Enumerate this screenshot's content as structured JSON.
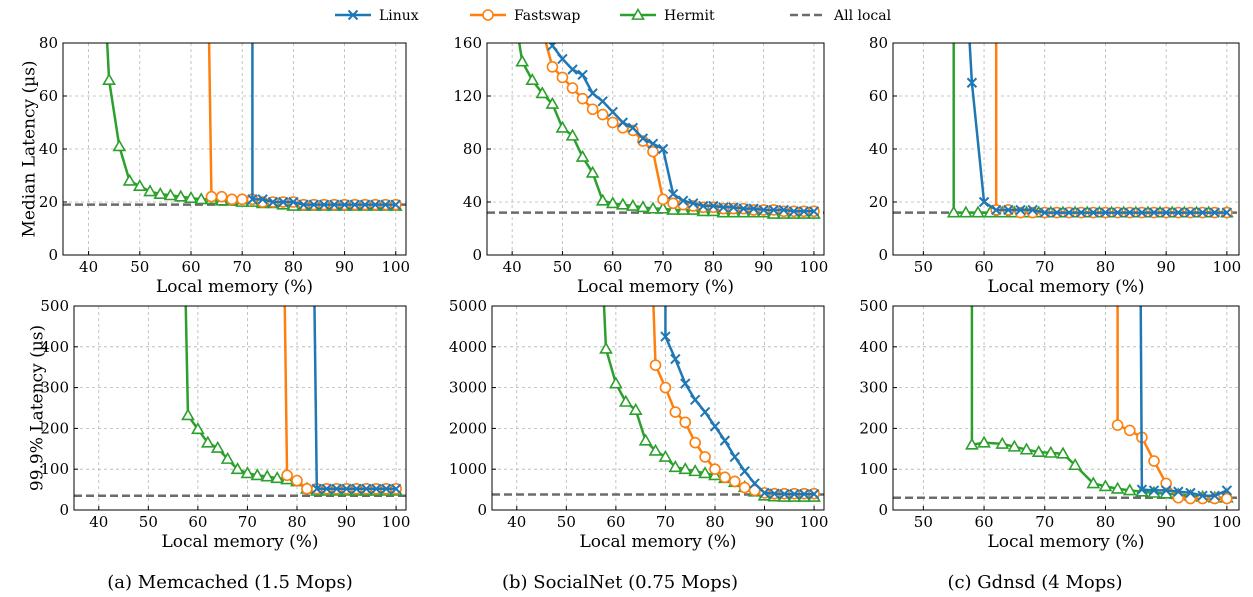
{
  "legend": {
    "placement": "top-center",
    "items": [
      {
        "label": "Linux",
        "color": "#1f77b4",
        "marker": "x",
        "dash": false
      },
      {
        "label": "Fastswap",
        "color": "#ff7f0e",
        "marker": "o",
        "dash": false
      },
      {
        "label": "Hermit",
        "color": "#2ca02c",
        "marker": "triangle",
        "dash": false
      },
      {
        "label": "All local",
        "color": "#6b6b6b",
        "marker": "none",
        "dash": true
      }
    ]
  },
  "captions": [
    "(a) Memcached (1.5 Mops)",
    "(b) SocialNet (0.75 Mops)",
    "(c) Gdnsd (4 Mops)"
  ],
  "chart_data": [
    {
      "type": "line",
      "panel": "a-top",
      "xlabel": "Local memory (%)",
      "ylabel": "Median Latency (µs)",
      "xlim": [
        35,
        102
      ],
      "ylim": [
        0,
        80
      ],
      "xticks": [
        40,
        50,
        60,
        70,
        80,
        90,
        100
      ],
      "yticks": [
        0,
        20,
        40,
        60,
        80
      ],
      "grid": true,
      "all_local": 19,
      "series": [
        {
          "name": "Linux",
          "x": [
            72,
            72,
            74,
            76,
            78,
            80,
            82,
            84,
            86,
            88,
            90,
            92,
            94,
            96,
            98,
            100
          ],
          "y": [
            85,
            21,
            21,
            20,
            20,
            20,
            19,
            19,
            19,
            19,
            19,
            19,
            19,
            19,
            19,
            19
          ]
        },
        {
          "name": "Fastswap",
          "x": [
            63.5,
            64,
            66,
            68,
            70,
            72,
            74,
            76,
            78,
            80,
            82,
            84,
            86,
            88,
            90,
            92,
            94,
            96,
            98,
            100
          ],
          "y": [
            85,
            22,
            22,
            21,
            21,
            21,
            20,
            20,
            20,
            20,
            19,
            19,
            19,
            19,
            19,
            19,
            19,
            19,
            19,
            19
          ]
        },
        {
          "name": "Hermit",
          "x": [
            43.5,
            44,
            46,
            48,
            50,
            52,
            54,
            56,
            58,
            60,
            62,
            64,
            66,
            68,
            70,
            72,
            74,
            76,
            78,
            80,
            82,
            84,
            86,
            88,
            90,
            92,
            94,
            96,
            98,
            100
          ],
          "y": [
            85,
            66,
            41,
            28,
            26,
            24,
            23,
            22.5,
            22,
            21.5,
            21,
            21,
            20.5,
            20.5,
            20,
            20,
            19.5,
            19.5,
            19,
            18.5,
            18.5,
            18.5,
            18.5,
            18.5,
            18.5,
            18.5,
            18.5,
            18.5,
            18.5,
            18.5
          ]
        }
      ]
    },
    {
      "type": "line",
      "panel": "b-top",
      "xlabel": "Local memory (%)",
      "ylabel": "",
      "xlim": [
        35,
        102
      ],
      "ylim": [
        0,
        160
      ],
      "xticks": [
        40,
        50,
        60,
        70,
        80,
        90,
        100
      ],
      "yticks": [
        0,
        40,
        80,
        120,
        160
      ],
      "grid": true,
      "all_local": 32,
      "series": [
        {
          "name": "Linux",
          "x": [
            47,
            48,
            50,
            52,
            54,
            56,
            58,
            60,
            62,
            64,
            66,
            68,
            70,
            72,
            74,
            76,
            78,
            80,
            82,
            84,
            86,
            88,
            90,
            92,
            94,
            96,
            98,
            100
          ],
          "y": [
            170,
            158,
            148,
            140,
            136,
            122,
            116,
            108,
            100,
            96,
            88,
            84,
            80,
            46,
            41,
            39,
            37,
            37,
            36,
            36,
            35,
            35,
            34,
            34,
            34,
            33,
            33,
            33
          ]
        },
        {
          "name": "Fastswap",
          "x": [
            46,
            48,
            50,
            52,
            54,
            56,
            58,
            60,
            62,
            64,
            66,
            68,
            70,
            72,
            74,
            76,
            78,
            80,
            82,
            84,
            86,
            88,
            90,
            92,
            94,
            96,
            98,
            100
          ],
          "y": [
            170,
            142,
            134,
            126,
            118,
            110,
            106,
            100,
            96,
            94,
            86,
            78,
            42,
            39,
            38,
            37,
            36,
            36,
            35,
            35,
            35,
            34,
            34,
            34,
            33,
            33,
            33,
            33
          ]
        },
        {
          "name": "Hermit",
          "x": [
            41,
            42,
            44,
            46,
            48,
            50,
            52,
            54,
            56,
            58,
            60,
            62,
            64,
            66,
            68,
            70,
            72,
            74,
            76,
            78,
            80,
            82,
            84,
            86,
            88,
            90,
            92,
            94,
            96,
            98,
            100
          ],
          "y": [
            170,
            146,
            132,
            122,
            114,
            96,
            90,
            74,
            62,
            41,
            39,
            38,
            37,
            36,
            35,
            35,
            34,
            34,
            34,
            33,
            33,
            32,
            32,
            32,
            32,
            32,
            31,
            31,
            31,
            31,
            31
          ]
        }
      ]
    },
    {
      "type": "line",
      "panel": "c-top",
      "xlabel": "Local memory (%)",
      "ylabel": "",
      "xlim": [
        45,
        102
      ],
      "ylim": [
        0,
        80
      ],
      "xticks": [
        50,
        60,
        70,
        80,
        90,
        100
      ],
      "yticks": [
        0,
        20,
        40,
        60,
        80
      ],
      "grid": true,
      "all_local": 16,
      "series": [
        {
          "name": "Linux",
          "x": [
            57.5,
            58,
            60,
            62,
            64,
            66,
            68,
            70,
            72,
            74,
            76,
            78,
            80,
            82,
            84,
            86,
            88,
            90,
            92,
            94,
            96,
            98,
            100
          ],
          "y": [
            85,
            65,
            20,
            17,
            17,
            17,
            17,
            16,
            16,
            16,
            16,
            16,
            16,
            16,
            16,
            16,
            16,
            16,
            16,
            16,
            16,
            16,
            16
          ]
        },
        {
          "name": "Fastswap",
          "x": [
            62,
            62,
            64,
            66,
            68,
            70,
            72,
            74,
            76,
            78,
            80,
            82,
            84,
            86,
            88,
            90,
            92,
            94,
            96,
            98,
            100
          ],
          "y": [
            85,
            17,
            17,
            16,
            16,
            16,
            16,
            16,
            16,
            16,
            16,
            16,
            16,
            16,
            16,
            16,
            16,
            16,
            16,
            16,
            16
          ]
        },
        {
          "name": "Hermit",
          "x": [
            55,
            55,
            57,
            59,
            61,
            63,
            65,
            67,
            69,
            71,
            73,
            75,
            77,
            79,
            81,
            83,
            85,
            87,
            89,
            91,
            93,
            95,
            97,
            100
          ],
          "y": [
            85,
            16,
            16,
            16,
            16,
            16,
            16,
            16,
            16,
            16,
            16,
            16,
            16,
            16,
            16,
            16,
            16,
            16,
            16,
            16,
            16,
            16,
            16,
            16
          ]
        }
      ]
    },
    {
      "type": "line",
      "panel": "a-bottom",
      "xlabel": "Local memory (%)",
      "ylabel": "99.9% Latency (µs)",
      "xlim": [
        35,
        102
      ],
      "ylim": [
        0,
        500
      ],
      "xticks": [
        40,
        50,
        60,
        70,
        80,
        90,
        100
      ],
      "yticks": [
        0,
        100,
        200,
        300,
        400,
        500
      ],
      "grid": true,
      "all_local": 35,
      "series": [
        {
          "name": "Linux",
          "x": [
            83.5,
            84,
            86,
            88,
            90,
            92,
            94,
            96,
            98,
            100
          ],
          "y": [
            530,
            52,
            52,
            52,
            52,
            52,
            52,
            52,
            52,
            52
          ]
        },
        {
          "name": "Fastswap",
          "x": [
            77.5,
            78,
            80,
            82,
            84,
            86,
            88,
            90,
            92,
            94,
            96,
            98,
            100
          ],
          "y": [
            530,
            85,
            72,
            52,
            52,
            52,
            52,
            52,
            52,
            52,
            52,
            52,
            52
          ]
        },
        {
          "name": "Hermit",
          "x": [
            57.5,
            58,
            60,
            62,
            64,
            66,
            68,
            70,
            72,
            74,
            76,
            78,
            80,
            82,
            84,
            86,
            88,
            90,
            92,
            94,
            96,
            98,
            100
          ],
          "y": [
            530,
            232,
            198,
            165,
            152,
            125,
            100,
            90,
            85,
            82,
            78,
            75,
            70,
            52,
            47,
            47,
            47,
            47,
            47,
            47,
            47,
            47,
            47
          ]
        }
      ]
    },
    {
      "type": "line",
      "panel": "b-bottom",
      "xlabel": "Local memory (%)",
      "ylabel": "",
      "xlim": [
        35,
        102
      ],
      "ylim": [
        0,
        5000
      ],
      "xticks": [
        40,
        50,
        60,
        70,
        80,
        90,
        100
      ],
      "yticks": [
        0,
        1000,
        2000,
        3000,
        4000,
        5000
      ],
      "grid": true,
      "all_local": 380,
      "series": [
        {
          "name": "Linux",
          "x": [
            70,
            70,
            72,
            74,
            76,
            78,
            80,
            82,
            84,
            86,
            88,
            90,
            92,
            94,
            96,
            98,
            100
          ],
          "y": [
            5300,
            4250,
            3700,
            3100,
            2700,
            2400,
            2050,
            1700,
            1300,
            950,
            650,
            420,
            400,
            390,
            390,
            390,
            390
          ]
        },
        {
          "name": "Fastswap",
          "x": [
            67.5,
            68,
            70,
            72,
            74,
            76,
            78,
            80,
            82,
            84,
            86,
            88,
            90,
            92,
            94,
            96,
            98,
            100
          ],
          "y": [
            5300,
            3550,
            3000,
            2400,
            2150,
            1650,
            1300,
            1000,
            800,
            700,
            550,
            480,
            420,
            400,
            400,
            400,
            400,
            400
          ]
        },
        {
          "name": "Hermit",
          "x": [
            57.5,
            58,
            60,
            62,
            64,
            66,
            68,
            70,
            72,
            74,
            76,
            78,
            80,
            82,
            84,
            86,
            88,
            90,
            92,
            94,
            96,
            98,
            100
          ],
          "y": [
            5300,
            3950,
            3100,
            2650,
            2450,
            1700,
            1450,
            1300,
            1050,
            1000,
            950,
            900,
            850,
            780,
            680,
            560,
            450,
            350,
            330,
            320,
            320,
            320,
            320
          ]
        }
      ]
    },
    {
      "type": "line",
      "panel": "c-bottom",
      "xlabel": "Local memory (%)",
      "ylabel": "",
      "xlim": [
        45,
        102
      ],
      "ylim": [
        0,
        500
      ],
      "xticks": [
        50,
        60,
        70,
        80,
        90,
        100
      ],
      "yticks": [
        0,
        100,
        200,
        300,
        400,
        500
      ],
      "grid": true,
      "all_local": 30,
      "series": [
        {
          "name": "Linux",
          "x": [
            85.8,
            86,
            88,
            90,
            92,
            94,
            96,
            98,
            100
          ],
          "y": [
            530,
            50,
            48,
            48,
            45,
            42,
            35,
            35,
            48
          ]
        },
        {
          "name": "Fastswap",
          "x": [
            82,
            82,
            84,
            86,
            88,
            90,
            92,
            94,
            96,
            98,
            100
          ],
          "y": [
            530,
            208,
            195,
            178,
            120,
            65,
            30,
            28,
            28,
            28,
            28
          ]
        },
        {
          "name": "Hermit",
          "x": [
            58,
            58,
            60,
            63,
            65,
            67,
            69,
            71,
            73,
            75,
            78,
            80,
            82,
            84,
            86,
            88,
            90,
            92,
            94,
            96,
            98,
            100
          ],
          "y": [
            530,
            160,
            165,
            162,
            155,
            148,
            142,
            140,
            138,
            110,
            65,
            58,
            52,
            48,
            45,
            42,
            40,
            38,
            35,
            32,
            30,
            30
          ]
        }
      ]
    }
  ]
}
